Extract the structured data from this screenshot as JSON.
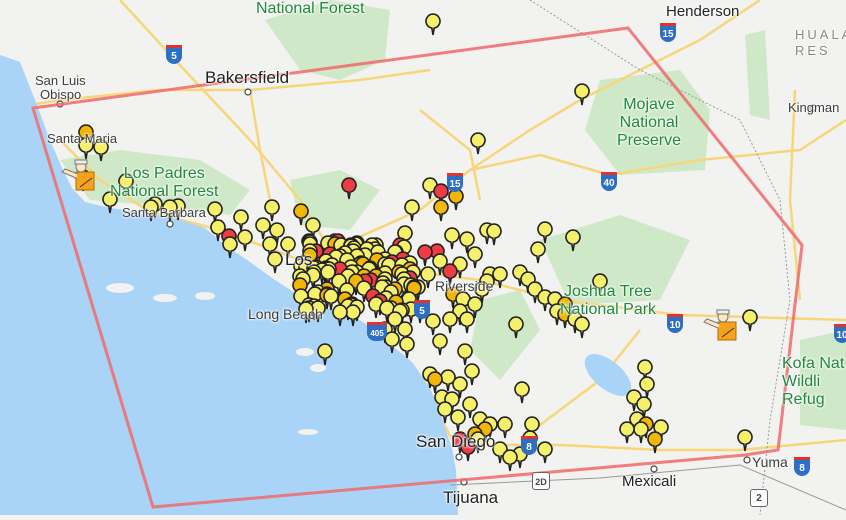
{
  "map": {
    "colors": {
      "water": "#a9d3f7",
      "land": "#f2f2f0",
      "park": "#cfe9c8",
      "road": "#f7d67a",
      "boundary": "#f06a6a",
      "marker_yellow": "#f5f06a",
      "marker_orange": "#f2b705",
      "marker_red": "#ef3b44"
    },
    "cities": {
      "bakersfield": "Bakersfield",
      "san_luis_obispo_1": "San Luis",
      "san_luis_obispo_2": "Obispo",
      "santa_maria": "Santa Maria",
      "santa_barbara": "Santa Barbara",
      "los_angeles": "Los",
      "long_beach": "Long Beach",
      "riverside": "Riverside",
      "san_diego": "San Diego",
      "tijuana": "Tijuana",
      "mexicali": "Mexicali",
      "yuma": "Yuma",
      "kingman": "Kingman",
      "henderson": "Henderson"
    },
    "parks": {
      "sierra": "National Forest",
      "los_padres_1": "Los Padres",
      "los_padres_2": "National Forest",
      "mojave_1": "Mojave",
      "mojave_2": "National",
      "mojave_3": "Preserve",
      "joshua_1": "Joshua Tree",
      "joshua_2": "National Park",
      "kofa_1": "Kofa Nat",
      "kofa_2": "Wildli",
      "kofa_3": "Refug",
      "hualapai_1": "HUALA",
      "hualapai_2": "RES"
    },
    "highways": {
      "i5_north": "5",
      "i15_north": "15",
      "i15_south": "15",
      "i40": "40",
      "i10_west": "10",
      "i10_east": "10",
      "i5_south": "5",
      "i8_west": "8",
      "i8_east": "8",
      "i405": "405",
      "mx2d": "2D",
      "mx2": "2"
    },
    "marker_types": [
      "yellow",
      "orange",
      "red"
    ],
    "icons": [
      "map-marker-icon",
      "traffic-officer-icon"
    ]
  }
}
